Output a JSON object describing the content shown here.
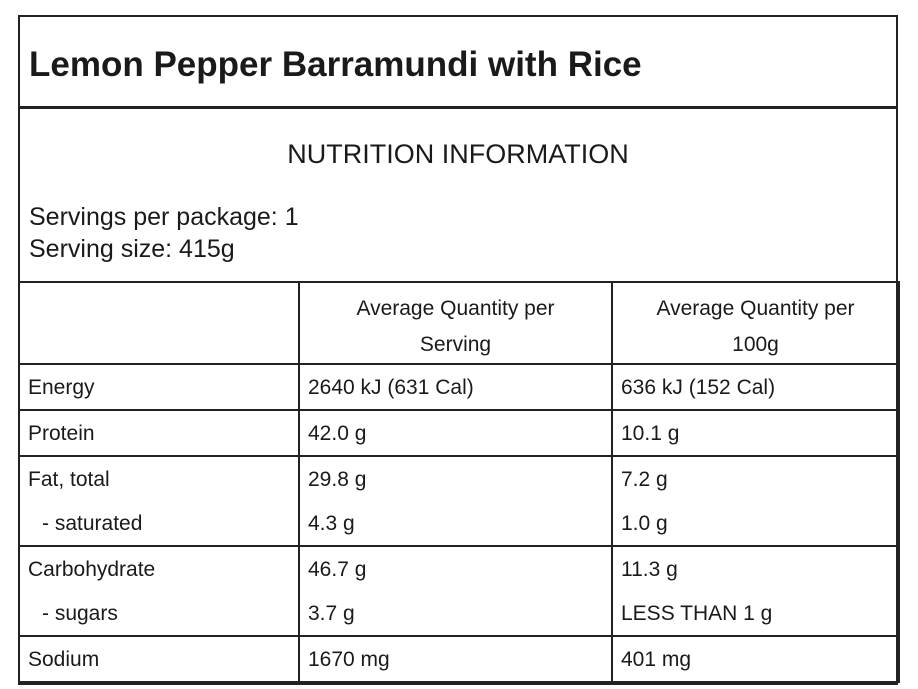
{
  "header": {
    "title": "Lemon Pepper Barramundi with Rice"
  },
  "section": {
    "heading": "NUTRITION INFORMATION",
    "servings": [
      "Servings per package: 1",
      "Serving size: 415g"
    ]
  },
  "table": {
    "columns": [
      "Average Quantity per Serving",
      "Average Quantity per 100g"
    ],
    "groups": [
      [
        [
          "Energy",
          "2640 kJ (631 Cal)",
          "636 kJ (152 Cal)"
        ]
      ],
      [
        [
          "Protein",
          "42.0 g",
          "10.1 g"
        ]
      ],
      [
        [
          "Fat, total",
          "29.8 g",
          "7.2 g"
        ],
        [
          "- saturated",
          "4.3 g",
          "1.0 g"
        ]
      ],
      [
        [
          "Carbohydrate",
          "46.7 g",
          "11.3 g"
        ],
        [
          "- sugars",
          "3.7 g",
          "LESS THAN 1 g"
        ]
      ],
      [
        [
          "Sodium",
          "1670 mg",
          "401 mg"
        ]
      ]
    ]
  }
}
